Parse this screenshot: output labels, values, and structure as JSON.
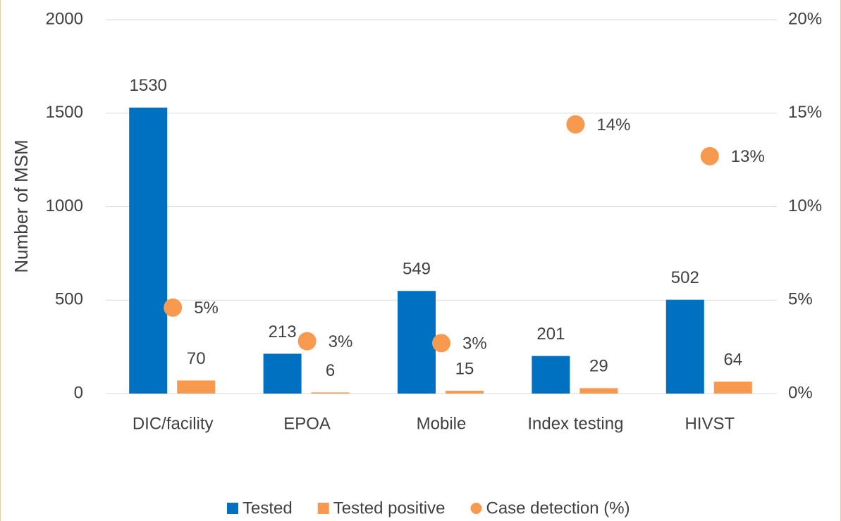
{
  "chart_data": {
    "type": "bar",
    "y_label": "Number of MSM",
    "categories": [
      "DIC/facility",
      "EPOA",
      "Mobile",
      "Index testing",
      "HIVST"
    ],
    "series": [
      {
        "name": "Tested",
        "color": "#0070c0",
        "values": [
          1530,
          213,
          549,
          201,
          502
        ]
      },
      {
        "name": "Tested positive",
        "color": "#f79a4f",
        "values": [
          70,
          6,
          15,
          29,
          64
        ]
      },
      {
        "name": "Case detection (%)",
        "color": "#f79a4f",
        "type": "scatter",
        "axis": "y2",
        "values": [
          4.6,
          2.8,
          2.7,
          14.4,
          12.7
        ],
        "value_labels": [
          "5%",
          "3%",
          "3%",
          "14%",
          "13%"
        ]
      }
    ],
    "ylim": [
      0,
      2000
    ],
    "yticks": [
      0,
      500,
      1000,
      1500,
      2000
    ],
    "y2lim": [
      0,
      20
    ],
    "y2ticks": [
      {
        "value": 0,
        "label": "0%"
      },
      {
        "value": 5,
        "label": "5%"
      },
      {
        "value": 10,
        "label": "10%"
      },
      {
        "value": 15,
        "label": "15%"
      },
      {
        "value": 20,
        "label": "20%"
      }
    ],
    "grid": true,
    "legend": "bottom"
  }
}
